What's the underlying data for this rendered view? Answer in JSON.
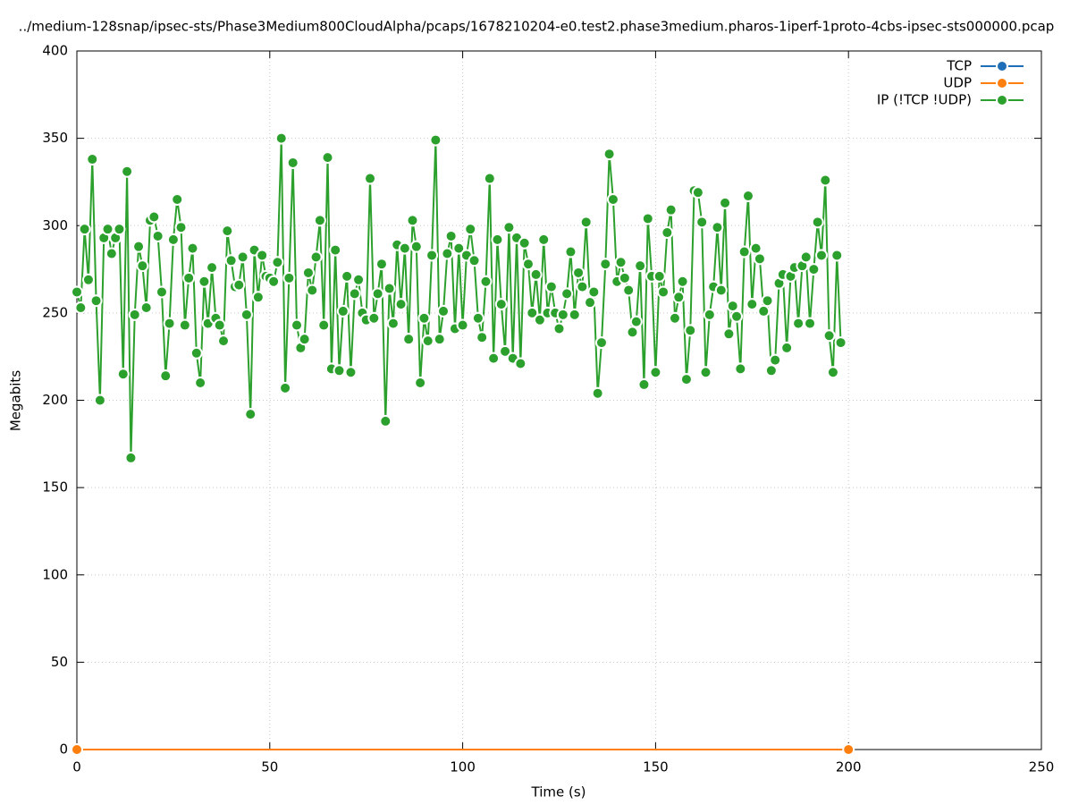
{
  "chart_data": {
    "type": "line",
    "title": "../medium-128snap/ipsec-sts/Phase3Medium800CloudAlpha/pcaps/1678210204-e0.test2.phase3medium.pharos-1iperf-1proto-4cbs-ipsec-sts000000.pcap",
    "xlabel": "Time (s)",
    "ylabel": "Megabits",
    "xlim": [
      0,
      250
    ],
    "xticks": [
      0,
      50,
      100,
      150,
      200,
      250
    ],
    "ylim": [
      0,
      400
    ],
    "yticks": [
      0,
      50,
      100,
      150,
      200,
      250,
      300,
      350,
      400
    ],
    "grid": true,
    "legend": "top-right",
    "series": [
      {
        "name": "TCP",
        "color": "#1f6fb8",
        "x": [],
        "values": []
      },
      {
        "name": "UDP",
        "color": "#ff7f0e",
        "x": [
          0,
          200
        ],
        "values": [
          0,
          0
        ]
      },
      {
        "name": "IP (!TCP  !UDP)",
        "color": "#2ca02c",
        "x": [
          0,
          1,
          2,
          3,
          4,
          5,
          6,
          7,
          8,
          9,
          10,
          11,
          12,
          13,
          14,
          15,
          16,
          17,
          18,
          19,
          20,
          21,
          22,
          23,
          24,
          25,
          26,
          27,
          28,
          29,
          30,
          31,
          32,
          33,
          34,
          35,
          36,
          37,
          38,
          39,
          40,
          41,
          42,
          43,
          44,
          45,
          46,
          47,
          48,
          49,
          50,
          51,
          52,
          53,
          54,
          55,
          56,
          57,
          58,
          59,
          60,
          61,
          62,
          63,
          64,
          65,
          66,
          67,
          68,
          69,
          70,
          71,
          72,
          73,
          74,
          75,
          76,
          77,
          78,
          79,
          80,
          81,
          82,
          83,
          84,
          85,
          86,
          87,
          88,
          89,
          90,
          91,
          92,
          93,
          94,
          95,
          96,
          97,
          98,
          99,
          100,
          101,
          102,
          103,
          104,
          105,
          106,
          107,
          108,
          109,
          110,
          111,
          112,
          113,
          114,
          115,
          116,
          117,
          118,
          119,
          120,
          121,
          122,
          123,
          124,
          125,
          126,
          127,
          128,
          129,
          130,
          131,
          132,
          133,
          134,
          135,
          136,
          137,
          138,
          139,
          140,
          141,
          142,
          143,
          144,
          145,
          146,
          147,
          148,
          149,
          150,
          151,
          152,
          153,
          154,
          155,
          156,
          157,
          158,
          159,
          160,
          161,
          162,
          163,
          164,
          165,
          166,
          167,
          168,
          169,
          170,
          171,
          172,
          173,
          174,
          175,
          176,
          177,
          178,
          179,
          180,
          181,
          182,
          183,
          184,
          185,
          186,
          187,
          188,
          189,
          190,
          191,
          192,
          193,
          194,
          195,
          196,
          197,
          198
        ],
        "values": [
          262,
          253,
          298,
          269,
          338,
          257,
          200,
          293,
          298,
          284,
          293,
          298,
          215,
          331,
          167,
          249,
          288,
          277,
          253,
          303,
          305,
          294,
          262,
          214,
          244,
          292,
          315,
          299,
          243,
          270,
          287,
          227,
          210,
          268,
          244,
          276,
          247,
          243,
          234,
          297,
          280,
          265,
          266,
          282,
          249,
          192,
          286,
          259,
          283,
          271,
          270,
          268,
          279,
          350,
          207,
          270,
          336,
          243,
          230,
          235,
          273,
          263,
          282,
          303,
          243,
          339,
          218,
          286,
          217,
          251,
          271,
          216,
          261,
          269,
          250,
          246,
          327,
          247,
          261,
          278,
          188,
          264,
          244,
          289,
          255,
          287,
          235,
          303,
          288,
          210,
          247,
          234,
          283,
          349,
          235,
          251,
          284,
          294,
          241,
          287,
          243,
          283,
          298,
          280,
          247,
          236,
          268,
          327,
          224,
          292,
          255,
          228,
          299,
          224,
          293,
          221,
          290,
          278,
          250,
          272,
          246,
          292,
          250,
          265,
          250,
          241,
          249,
          261,
          285,
          249,
          273,
          265,
          302,
          256,
          262,
          204,
          233,
          278,
          341,
          315,
          268,
          279,
          270,
          263,
          239,
          245,
          277,
          209,
          304,
          271,
          216,
          271,
          262,
          296,
          309,
          247,
          259,
          268,
          212,
          240,
          320,
          319,
          302,
          216,
          249,
          265,
          299,
          263,
          313,
          238,
          254,
          248,
          218,
          285,
          317,
          255,
          287,
          281,
          251,
          257,
          217,
          223,
          267,
          272,
          230,
          271,
          276,
          244,
          277,
          282,
          244,
          275,
          302,
          283,
          326,
          237,
          216,
          283,
          233
        ]
      }
    ]
  }
}
